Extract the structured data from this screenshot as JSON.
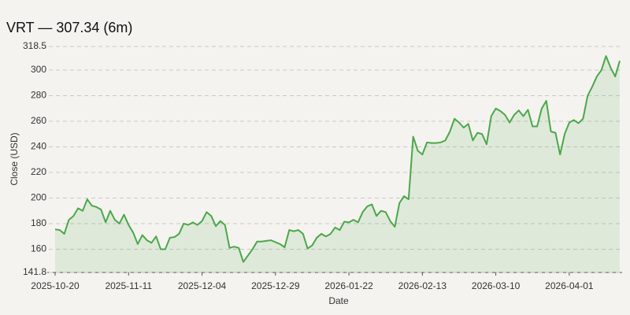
{
  "chart_data": {
    "type": "line",
    "title": "VRT — 307.34 (6m)",
    "xlabel": "Date",
    "ylabel": "Close (USD)",
    "x": [
      "2025-10-20",
      "2025-10-21",
      "2025-10-22",
      "2025-10-23",
      "2025-10-24",
      "2025-10-27",
      "2025-10-28",
      "2025-10-29",
      "2025-10-30",
      "2025-10-31",
      "2025-11-03",
      "2025-11-04",
      "2025-11-05",
      "2025-11-06",
      "2025-11-07",
      "2025-11-10",
      "2025-11-11",
      "2025-11-12",
      "2025-11-13",
      "2025-11-14",
      "2025-11-17",
      "2025-11-18",
      "2025-11-19",
      "2025-11-20",
      "2025-11-21",
      "2025-11-24",
      "2025-11-25",
      "2025-11-26",
      "2025-11-28",
      "2025-12-01",
      "2025-12-02",
      "2025-12-03",
      "2025-12-04",
      "2025-12-05",
      "2025-12-08",
      "2025-12-09",
      "2025-12-10",
      "2025-12-11",
      "2025-12-12",
      "2025-12-15",
      "2025-12-16",
      "2025-12-17",
      "2025-12-18",
      "2025-12-19",
      "2025-12-22",
      "2025-12-23",
      "2025-12-24",
      "2025-12-26",
      "2025-12-29",
      "2025-12-30",
      "2025-12-31",
      "2026-01-02",
      "2026-01-05",
      "2026-01-06",
      "2026-01-07",
      "2026-01-08",
      "2026-01-09",
      "2026-01-12",
      "2026-01-13",
      "2026-01-14",
      "2026-01-15",
      "2026-01-16",
      "2026-01-20",
      "2026-01-21",
      "2026-01-22",
      "2026-01-23",
      "2026-01-26",
      "2026-01-27",
      "2026-01-28",
      "2026-01-29",
      "2026-01-30",
      "2026-02-02",
      "2026-02-03",
      "2026-02-04",
      "2026-02-05",
      "2026-02-06",
      "2026-02-09",
      "2026-02-10",
      "2026-02-11",
      "2026-02-12",
      "2026-02-13",
      "2026-02-17",
      "2026-02-18",
      "2026-02-19",
      "2026-02-20",
      "2026-02-23",
      "2026-02-24",
      "2026-02-25",
      "2026-02-26",
      "2026-02-27",
      "2026-03-02",
      "2026-03-03",
      "2026-03-04",
      "2026-03-05",
      "2026-03-06",
      "2026-03-09",
      "2026-03-10",
      "2026-03-11",
      "2026-03-12",
      "2026-03-13",
      "2026-03-16",
      "2026-03-17",
      "2026-03-18",
      "2026-03-19",
      "2026-03-20",
      "2026-03-23",
      "2026-03-24",
      "2026-03-25",
      "2026-03-26",
      "2026-03-27",
      "2026-03-30",
      "2026-03-31",
      "2026-04-01",
      "2026-04-02",
      "2026-04-06",
      "2026-04-07",
      "2026-04-08",
      "2026-04-09",
      "2026-04-10",
      "2026-04-13",
      "2026-04-14",
      "2026-04-15",
      "2026-04-16",
      "2026-04-17"
    ],
    "series": [
      {
        "name": "Close",
        "color": "#4aa84a",
        "values": [
          175.5,
          175,
          172,
          183,
          186,
          192,
          190,
          199,
          194,
          193,
          191,
          181,
          190,
          183,
          180,
          187,
          179,
          173,
          164,
          171,
          167,
          165,
          170,
          160,
          160,
          169,
          169.5,
          172,
          180,
          179,
          181,
          179,
          182,
          189,
          186,
          178,
          182,
          179,
          161,
          162,
          161,
          150,
          155,
          160,
          166,
          166,
          166.5,
          167,
          165.5,
          164,
          161.5,
          175,
          174,
          175,
          172,
          160.5,
          163,
          169,
          172,
          170,
          172,
          177,
          175,
          181.5,
          181,
          183,
          181,
          189,
          193.5,
          195,
          186,
          190,
          189,
          182,
          177.5,
          196,
          201.5,
          199,
          248,
          237,
          234,
          243.5,
          243,
          243,
          243.5,
          245,
          252,
          262,
          259,
          255,
          258,
          245,
          251,
          250,
          242,
          264,
          270,
          268,
          265,
          259,
          265,
          268.5,
          264,
          269,
          256,
          256,
          270,
          276,
          252,
          251,
          234,
          250,
          259,
          261,
          258.5,
          262,
          280,
          287,
          295,
          300,
          311,
          302,
          295,
          307.34
        ]
      }
    ],
    "xticks": [
      "2025-10-20",
      "2025-11-11",
      "2025-12-04",
      "2025-12-29",
      "2026-01-22",
      "2026-02-13",
      "2026-03-10",
      "2026-04-01"
    ],
    "ylim": [
      141.8,
      318.5
    ],
    "yticks": [
      141.8,
      160,
      180,
      200,
      220,
      240,
      260,
      280,
      300,
      318.5
    ],
    "grid": true,
    "area": true
  }
}
